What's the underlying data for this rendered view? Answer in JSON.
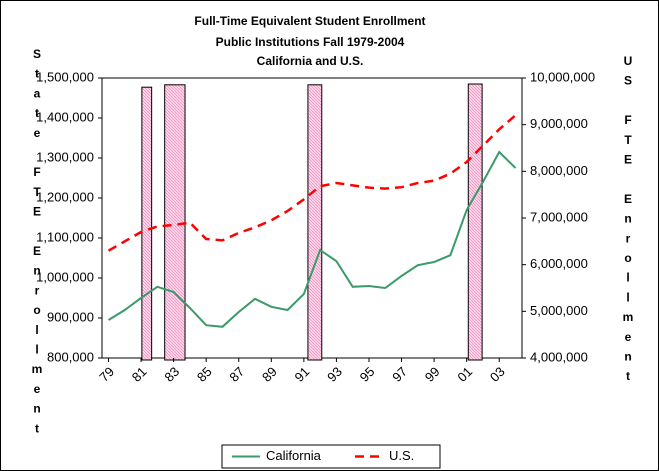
{
  "chart_data": {
    "type": "line",
    "title": [
      "Full-Time Equivalent Student Enrollment",
      "Public Institutions Fall 1979-2004",
      "California and U.S."
    ],
    "y_label": "State FTE Enrollment",
    "y2_label": "US FTE Enrollment",
    "x": [
      1979,
      1980,
      1981,
      1982,
      1983,
      1984,
      1985,
      1986,
      1987,
      1988,
      1989,
      1990,
      1991,
      1992,
      1993,
      1994,
      1995,
      1996,
      1997,
      1998,
      1999,
      2000,
      2001,
      2002,
      2003,
      2004
    ],
    "xlim": [
      1978.6,
      2004.4
    ],
    "xticks": [
      {
        "value": 1979,
        "label": "79"
      },
      {
        "value": 1981,
        "label": "81"
      },
      {
        "value": 1983,
        "label": "83"
      },
      {
        "value": 1985,
        "label": "85"
      },
      {
        "value": 1987,
        "label": "87"
      },
      {
        "value": 1989,
        "label": "89"
      },
      {
        "value": 1991,
        "label": "91"
      },
      {
        "value": 1993,
        "label": "93"
      },
      {
        "value": 1995,
        "label": "95"
      },
      {
        "value": 1997,
        "label": "97"
      },
      {
        "value": 1999,
        "label": "99"
      },
      {
        "value": 2001,
        "label": "01"
      },
      {
        "value": 2003,
        "label": "03"
      }
    ],
    "ylim": [
      800000,
      1500000
    ],
    "yticks": [
      {
        "value": 800000,
        "label": "800,000"
      },
      {
        "value": 900000,
        "label": "900,000"
      },
      {
        "value": 1000000,
        "label": "1,000,000"
      },
      {
        "value": 1100000,
        "label": "1,100,000"
      },
      {
        "value": 1200000,
        "label": "1,200,000"
      },
      {
        "value": 1300000,
        "label": "1,300,000"
      },
      {
        "value": 1400000,
        "label": "1,400,000"
      },
      {
        "value": 1500000,
        "label": "1,500,000"
      }
    ],
    "y2lim": [
      4000000,
      10000000
    ],
    "y2ticks": [
      {
        "value": 4000000,
        "label": "4,000,000"
      },
      {
        "value": 5000000,
        "label": "5,000,000"
      },
      {
        "value": 6000000,
        "label": "6,000,000"
      },
      {
        "value": 7000000,
        "label": "7,000,000"
      },
      {
        "value": 8000000,
        "label": "8,000,000"
      },
      {
        "value": 9000000,
        "label": "9,000,000"
      },
      {
        "value": 10000000,
        "label": "10,000,000"
      }
    ],
    "series": [
      {
        "name": "California",
        "color": "#3a9a6a",
        "values": [
          895000,
          920000,
          950000,
          978000,
          965000,
          925000,
          882000,
          878000,
          915000,
          948000,
          928000,
          920000,
          960000,
          1070000,
          1042000,
          978000,
          980000,
          975000,
          1005000,
          1032000,
          1040000,
          1057000,
          1170000,
          1240000,
          1315000,
          1275000
        ]
      },
      {
        "name": "U.S.",
        "color": "#ff0000",
        "dashed": true,
        "axis": "y2",
        "values": [
          6300000,
          6500000,
          6700000,
          6820000,
          6850000,
          6900000,
          6550000,
          6520000,
          6680000,
          6800000,
          6950000,
          7150000,
          7400000,
          7680000,
          7750000,
          7700000,
          7650000,
          7630000,
          7660000,
          7750000,
          7800000,
          7950000,
          8200000,
          8550000,
          8900000,
          9200000
        ]
      }
    ],
    "shaded_periods": [
      {
        "from": 1981.05,
        "to": 1981.65,
        "top": 1477000
      },
      {
        "from": 1982.45,
        "to": 1983.7,
        "top": 1483000
      },
      {
        "from": 1991.25,
        "to": 1992.1,
        "top": 1483000
      },
      {
        "from": 2001.1,
        "to": 2001.95,
        "top": 1485000
      }
    ],
    "shade_color": "#ffb3d9"
  }
}
